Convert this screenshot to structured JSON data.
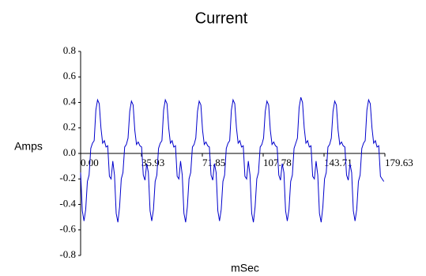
{
  "chart_data": {
    "type": "line",
    "title": "Current",
    "xlabel": "mSec",
    "ylabel": "Amps",
    "x": [
      0,
      1,
      2,
      3,
      4,
      5,
      6,
      7,
      8,
      9,
      10,
      11,
      12,
      13,
      14,
      15,
      16,
      17,
      18,
      19,
      20,
      21,
      22,
      23,
      24,
      25,
      26,
      27,
      28,
      29,
      30,
      31,
      32,
      33,
      34,
      35,
      36,
      37,
      38,
      39,
      40,
      41,
      42,
      43,
      44,
      45,
      46,
      47,
      48,
      49,
      50,
      51,
      52,
      53,
      54,
      55,
      56,
      57,
      58,
      59,
      60,
      61,
      62,
      63,
      64,
      65,
      66,
      67,
      68,
      69,
      70,
      71,
      72,
      73,
      74,
      75,
      76,
      77,
      78,
      79,
      80,
      81,
      82,
      83,
      84,
      85,
      86,
      87,
      88,
      89,
      90,
      91,
      92,
      93,
      94,
      95,
      96,
      97,
      98,
      99,
      100,
      101,
      102,
      103,
      104,
      105,
      106,
      107,
      108,
      109,
      110,
      111,
      112,
      113,
      114,
      115,
      116,
      117,
      118,
      119,
      120,
      121,
      122,
      123,
      124,
      125,
      126,
      127,
      128,
      129,
      130,
      131,
      132,
      133,
      134,
      135,
      136,
      137,
      138,
      139,
      140,
      141,
      142,
      143,
      144,
      145,
      146,
      147,
      148,
      149,
      150,
      151,
      152,
      153,
      154,
      155,
      156,
      157,
      158,
      159,
      160,
      161,
      162,
      163,
      164,
      165,
      166,
      167,
      168,
      169,
      170,
      171,
      172,
      173,
      174,
      175,
      176,
      177,
      178,
      179
    ],
    "series": [
      {
        "name": "Current",
        "color": "#0000cc",
        "values": [
          -0.15,
          -0.45,
          -0.53,
          -0.44,
          -0.22,
          -0.17,
          0.04,
          0.08,
          0.1,
          0.34,
          0.42,
          0.39,
          0.2,
          0.08,
          0.1,
          0.05,
          0.06,
          -0.18,
          -0.2,
          -0.06,
          -0.17,
          -0.47,
          -0.54,
          -0.42,
          -0.2,
          -0.15,
          0.05,
          0.07,
          0.12,
          0.33,
          0.41,
          0.38,
          0.18,
          0.07,
          0.09,
          0.06,
          0.05,
          -0.17,
          -0.21,
          -0.08,
          -0.15,
          -0.45,
          -0.53,
          -0.44,
          -0.22,
          -0.17,
          0.04,
          0.08,
          0.1,
          0.34,
          0.42,
          0.39,
          0.2,
          0.08,
          0.1,
          0.05,
          0.06,
          -0.18,
          -0.2,
          -0.06,
          -0.17,
          -0.47,
          -0.54,
          -0.42,
          -0.2,
          -0.15,
          0.05,
          0.07,
          0.12,
          0.33,
          0.41,
          0.38,
          0.18,
          0.07,
          0.09,
          0.06,
          0.05,
          -0.17,
          -0.21,
          -0.08,
          -0.15,
          -0.45,
          -0.53,
          -0.44,
          -0.22,
          -0.17,
          0.04,
          0.08,
          0.1,
          0.34,
          0.42,
          0.39,
          0.2,
          0.08,
          0.1,
          0.05,
          0.06,
          -0.18,
          -0.2,
          -0.06,
          -0.17,
          -0.47,
          -0.54,
          -0.42,
          -0.2,
          -0.15,
          0.05,
          0.07,
          0.12,
          0.33,
          0.41,
          0.38,
          0.18,
          0.07,
          0.09,
          0.06,
          0.05,
          -0.17,
          -0.21,
          -0.08,
          -0.15,
          -0.45,
          -0.53,
          -0.44,
          -0.22,
          -0.17,
          0.04,
          0.08,
          0.12,
          0.36,
          0.44,
          0.4,
          0.2,
          0.08,
          0.1,
          0.05,
          0.06,
          -0.18,
          -0.2,
          -0.06,
          -0.17,
          -0.47,
          -0.54,
          -0.42,
          -0.2,
          -0.15,
          0.05,
          0.07,
          0.12,
          0.33,
          0.41,
          0.38,
          0.18,
          0.07,
          0.09,
          0.06,
          0.05,
          -0.17,
          -0.21,
          -0.08,
          -0.15,
          -0.45,
          -0.53,
          -0.44,
          -0.22,
          -0.17,
          0.04,
          0.08,
          0.1,
          0.34,
          0.42,
          0.39,
          0.2,
          0.08,
          0.1,
          0.05,
          0.06,
          -0.18,
          -0.2,
          -0.22
        ]
      }
    ],
    "xlim": [
      0,
      179.63
    ],
    "xticks": [
      {
        "value": 0,
        "label": "0.00"
      },
      35.93,
      71.85,
      107.78,
      143.71,
      179.63
    ],
    "ylim": [
      -0.8,
      0.8
    ],
    "yticks": [
      -0.8,
      -0.6,
      -0.4,
      -0.2,
      {
        "value": 0,
        "label": "0.0"
      },
      0.2,
      0.4,
      0.6,
      0.8
    ]
  }
}
